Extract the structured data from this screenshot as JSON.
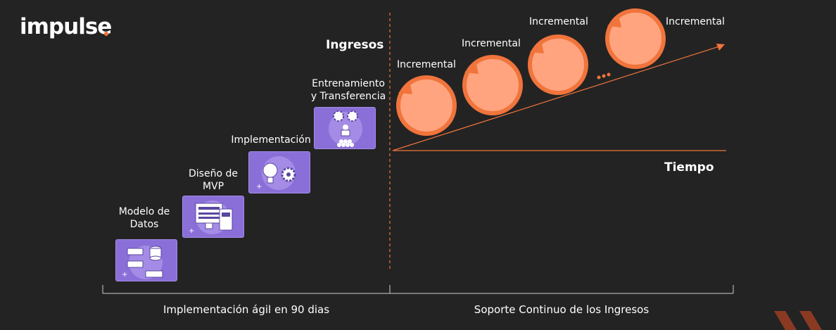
{
  "brand": {
    "name": "impulse",
    "accent": "#f0743c",
    "card_color": "#8a6fd8"
  },
  "steps": [
    {
      "label": "Modelo de Datos",
      "icon": "database-servers-icon"
    },
    {
      "label": "Diseño de MVP",
      "icon": "monitor-mobile-icon"
    },
    {
      "label": "Implementación",
      "icon": "lightbulb-gear-icon"
    },
    {
      "label": "Entrenamiento y Transferencia",
      "icon": "presenter-audience-icon"
    }
  ],
  "steps_lines": {
    "s0a": "Modelo de",
    "s0b": "Datos",
    "s1a": "Diseño de",
    "s1b": "MVP",
    "s2a": "Implementación",
    "s3a": "Entrenamiento",
    "s3b": "y Transferencia"
  },
  "axis": {
    "y_label": "Ingresos",
    "x_label": "Tiempo"
  },
  "incrementals": [
    "Incremental",
    "Incremental",
    "Incremental",
    "Incremental"
  ],
  "bottom": {
    "left": "Implementación ágil en 90 dias",
    "right": "Soporte Continuo de los Ingresos"
  }
}
